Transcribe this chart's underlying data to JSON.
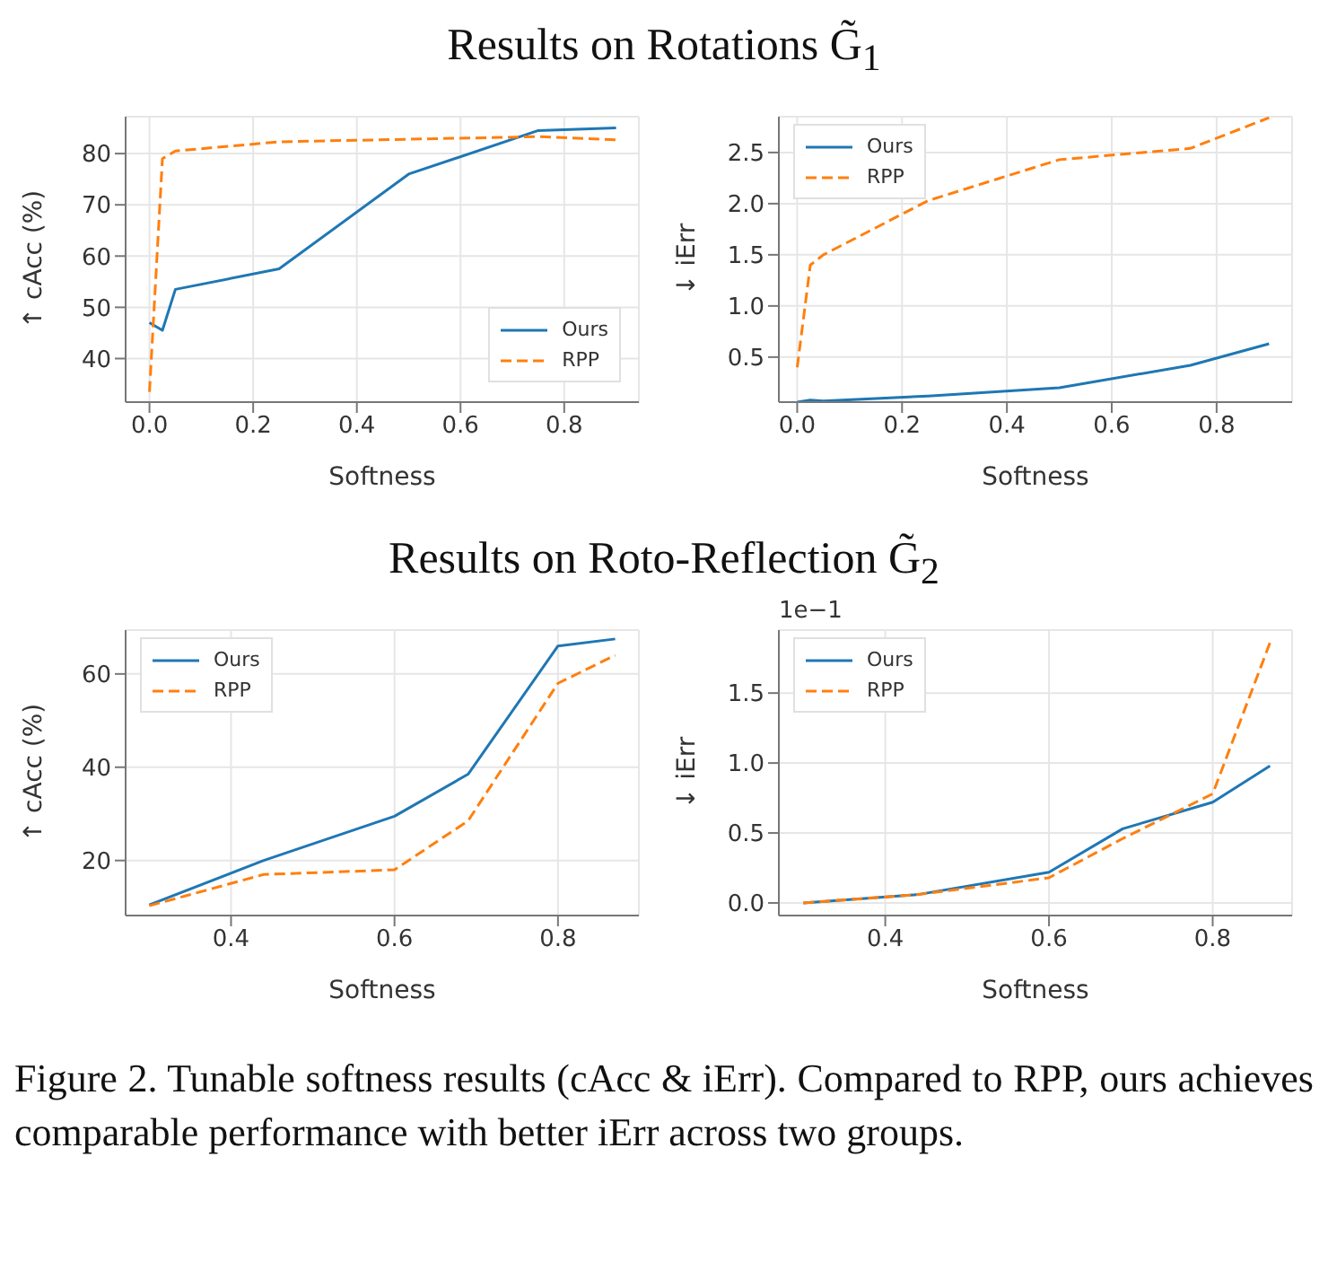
{
  "chart_data": [
    {
      "type": "line",
      "title": "Results on Rotations G̃$_{1}$",
      "xlabel": "Softness",
      "ylabel": "↑ cAcc (%)",
      "x": [
        0,
        0.025,
        0.05,
        0.25,
        0.5,
        0.75,
        0.9
      ],
      "xlim": [
        -0.046,
        0.944
      ],
      "xticks": [
        {
          "value": 0,
          "label": "0.0"
        },
        0.2,
        0.4,
        0.6,
        0.8
      ],
      "ylim": [
        31.5,
        87.2
      ],
      "yticks": [
        40,
        50,
        60,
        70,
        80
      ],
      "grid": true,
      "legend": "bottom right",
      "series": [
        {
          "name": "Ours",
          "color": "#1f77b4",
          "line_style": "solid",
          "values": [
            47,
            45.5,
            53.5,
            57.5,
            76,
            84.5,
            85
          ]
        },
        {
          "name": "RPP",
          "color": "#ff7f0e",
          "line_style": "dashed",
          "values": [
            33.5,
            79,
            80.5,
            82.3,
            82.8,
            83.3,
            82.7
          ]
        }
      ]
    },
    {
      "type": "line",
      "xlabel": "Softness",
      "ylabel": "↓ iErr",
      "x": [
        0,
        0.025,
        0.05,
        0.25,
        0.5,
        0.75,
        0.9
      ],
      "xlim": [
        -0.035,
        0.944
      ],
      "xticks": [
        {
          "value": 0,
          "label": "0.0"
        },
        0.2,
        0.4,
        0.6,
        0.8
      ],
      "ylim": [
        0.06,
        2.85
      ],
      "yticks": [
        0.5,
        {
          "value": 1,
          "label": "1.0"
        },
        1.5,
        {
          "value": 2,
          "label": "2.0"
        },
        2.5
      ],
      "grid": true,
      "legend": "top left",
      "series": [
        {
          "name": "Ours",
          "color": "#1f77b4",
          "line_style": "solid",
          "values": [
            0.06,
            0.08,
            0.07,
            0.12,
            0.2,
            0.42,
            0.63
          ]
        },
        {
          "name": "RPP",
          "color": "#ff7f0e",
          "line_style": "dashed",
          "values": [
            0.4,
            1.4,
            1.5,
            2.03,
            2.43,
            2.54,
            2.84
          ]
        }
      ]
    },
    {
      "type": "line",
      "title": "Results on Roto-Reflection G̃$_{2}$",
      "xlabel": "Softness",
      "ylabel": "↑ cAcc (%)",
      "annotations": [
        "Figure 2.  Tunable softness results (cAcc & iErr). Compared to RPP, ours achieves comparable performance with better iErr across two groups."
      ],
      "x": [
        0.3,
        0.44,
        0.6,
        0.69,
        0.8,
        0.87
      ],
      "xlim": [
        0.271,
        0.899
      ],
      "xticks": [
        0.4,
        0.6,
        0.8
      ],
      "ylim": [
        8.2,
        69.4
      ],
      "yticks": [
        20,
        40,
        60
      ],
      "grid": true,
      "legend": "top left",
      "series": [
        {
          "name": "Ours",
          "color": "#1f77b4",
          "line_style": "solid",
          "values": [
            10.5,
            20,
            29.5,
            38.5,
            66,
            67.5
          ]
        },
        {
          "name": "RPP",
          "color": "#ff7f0e",
          "line_style": "dashed",
          "values": [
            10.3,
            17,
            18,
            28.5,
            58,
            64
          ]
        }
      ]
    },
    {
      "type": "line",
      "xlabel": "Softness",
      "ylabel": "↓ iErr",
      "annotations": [
        "1e−1"
      ],
      "x": [
        0.3,
        0.44,
        0.6,
        0.69,
        0.8,
        0.87
      ],
      "xlim": [
        0.27,
        0.897
      ],
      "xticks": [
        0.4,
        0.6,
        0.8
      ],
      "ylim": [
        -0.09,
        1.95
      ],
      "yticks": [
        {
          "value": 0,
          "label": "0.0"
        },
        0.5,
        {
          "value": 1,
          "label": "1.0"
        },
        1.5
      ],
      "grid": true,
      "legend": "top left",
      "series": [
        {
          "name": "Ours",
          "color": "#1f77b4",
          "line_style": "solid",
          "values": [
            0.0,
            0.06,
            0.22,
            0.53,
            0.72,
            0.98
          ]
        },
        {
          "name": "RPP",
          "color": "#ff7f0e",
          "line_style": "dashed",
          "values": [
            0.0,
            0.06,
            0.18,
            0.46,
            0.78,
            1.86
          ]
        }
      ]
    }
  ]
}
